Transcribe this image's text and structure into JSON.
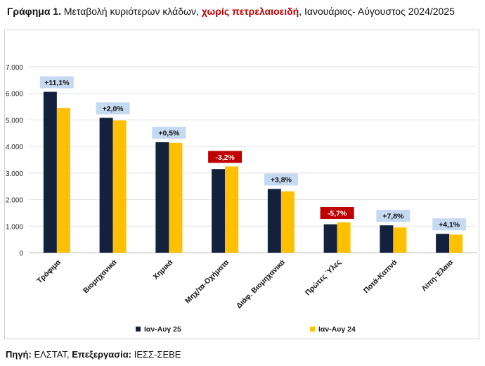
{
  "header": {
    "title_prefix": "Γράφημα 1.",
    "title_part1": " Μεταβολή κυριότερων κλάδων, ",
    "title_highlight": "χωρίς πετρελαιοειδή",
    "title_part2": ", Ιανουάριος- Αύγουστος 2024/2025"
  },
  "footer": {
    "source_label": "Πηγή:",
    "source_value": " ΕΛΣΤΑΤ, ",
    "processing_label": "Επεξεργασία:",
    "processing_value": " ΙΕΣΣ-ΣΕΒΕ"
  },
  "chart_data": {
    "type": "bar",
    "categories": [
      "Τρόφιμα",
      "Βιομηχανικά",
      "Χημικά",
      "Μηχ/τα-Οχήματα",
      "Διάφ. Βιομηχανικά",
      "Πρώτες Ύλες",
      "Ποτά-Καπνά",
      "Λίπη-Έλαια"
    ],
    "series": [
      {
        "name": "Ιαν-Αυγ 25",
        "color": "#14213d",
        "values": [
          6060,
          5080,
          4160,
          3150,
          2400,
          1070,
          1030,
          710
        ]
      },
      {
        "name": "Ιαν-Αυγ 24",
        "color": "#ffc000",
        "values": [
          5450,
          4980,
          4140,
          3250,
          2310,
          1140,
          950,
          680
        ]
      }
    ],
    "changes": [
      "+11,1%",
      "+2,0%",
      "+0,5%",
      "-3,2%",
      "+3,8%",
      "-5,7%",
      "+7,8%",
      "+4,1%"
    ],
    "change_negative": [
      false,
      false,
      false,
      true,
      false,
      true,
      false,
      false
    ],
    "yticks": [
      "0",
      "1.000",
      "2.000",
      "3.000",
      "4.000",
      "5.000",
      "6.000",
      "7.000"
    ],
    "ylim": [
      0,
      7000
    ],
    "grid": true,
    "legend_position": "bottom",
    "colors": {
      "positive_badge": "#c5d9f1",
      "negative_badge": "#c00000"
    }
  }
}
